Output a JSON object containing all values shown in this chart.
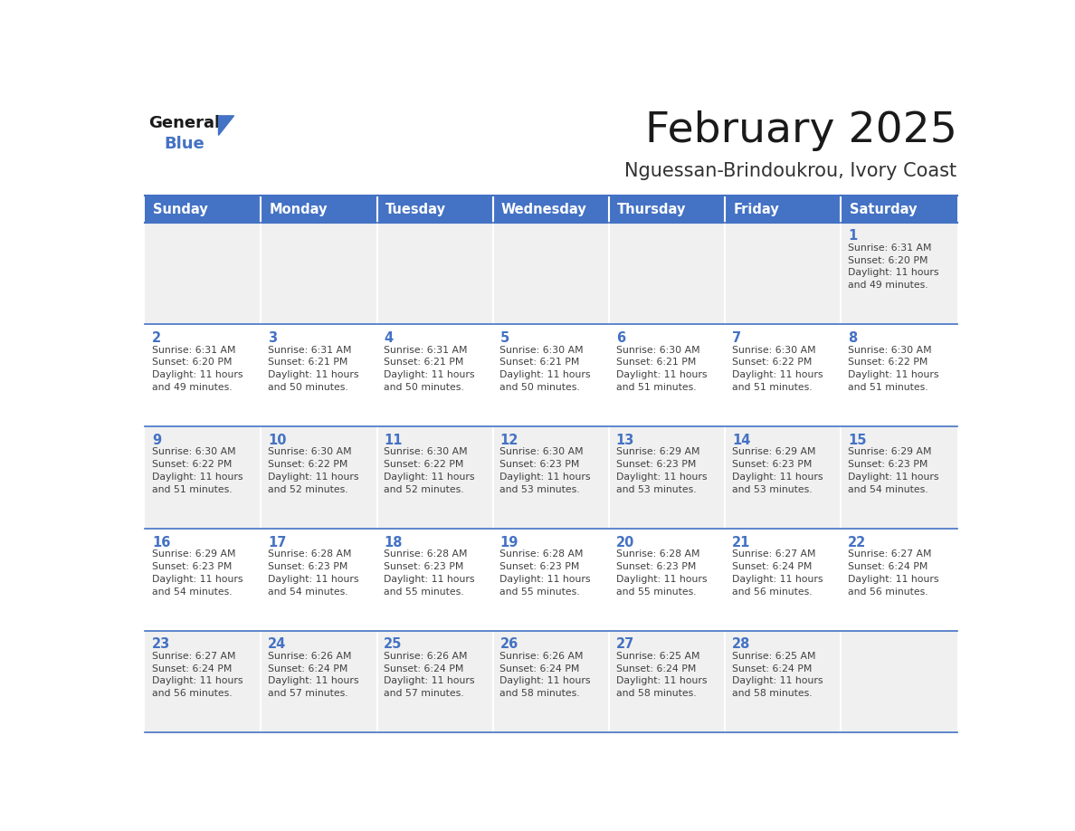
{
  "title": "February 2025",
  "subtitle": "Nguessan-Brindoukrou, Ivory Coast",
  "days_of_week": [
    "Sunday",
    "Monday",
    "Tuesday",
    "Wednesday",
    "Thursday",
    "Friday",
    "Saturday"
  ],
  "header_bg": "#4472C4",
  "header_text": "#FFFFFF",
  "cell_bg_odd": "#F0F0F0",
  "cell_bg_even": "#FFFFFF",
  "row_sep_color": "#4472C4",
  "day_number_color": "#4472C4",
  "text_color": "#404040",
  "title_color": "#1a1a1a",
  "subtitle_color": "#333333",
  "logo_general_color": "#1a1a1a",
  "logo_blue_color": "#4472C4",
  "weeks": [
    [
      {
        "day": null,
        "sunrise": null,
        "sunset": null,
        "daylight": null
      },
      {
        "day": null,
        "sunrise": null,
        "sunset": null,
        "daylight": null
      },
      {
        "day": null,
        "sunrise": null,
        "sunset": null,
        "daylight": null
      },
      {
        "day": null,
        "sunrise": null,
        "sunset": null,
        "daylight": null
      },
      {
        "day": null,
        "sunrise": null,
        "sunset": null,
        "daylight": null
      },
      {
        "day": null,
        "sunrise": null,
        "sunset": null,
        "daylight": null
      },
      {
        "day": 1,
        "sunrise": "6:31 AM",
        "sunset": "6:20 PM",
        "daylight": "11 hours\nand 49 minutes."
      }
    ],
    [
      {
        "day": 2,
        "sunrise": "6:31 AM",
        "sunset": "6:20 PM",
        "daylight": "11 hours\nand 49 minutes."
      },
      {
        "day": 3,
        "sunrise": "6:31 AM",
        "sunset": "6:21 PM",
        "daylight": "11 hours\nand 50 minutes."
      },
      {
        "day": 4,
        "sunrise": "6:31 AM",
        "sunset": "6:21 PM",
        "daylight": "11 hours\nand 50 minutes."
      },
      {
        "day": 5,
        "sunrise": "6:30 AM",
        "sunset": "6:21 PM",
        "daylight": "11 hours\nand 50 minutes."
      },
      {
        "day": 6,
        "sunrise": "6:30 AM",
        "sunset": "6:21 PM",
        "daylight": "11 hours\nand 51 minutes."
      },
      {
        "day": 7,
        "sunrise": "6:30 AM",
        "sunset": "6:22 PM",
        "daylight": "11 hours\nand 51 minutes."
      },
      {
        "day": 8,
        "sunrise": "6:30 AM",
        "sunset": "6:22 PM",
        "daylight": "11 hours\nand 51 minutes."
      }
    ],
    [
      {
        "day": 9,
        "sunrise": "6:30 AM",
        "sunset": "6:22 PM",
        "daylight": "11 hours\nand 51 minutes."
      },
      {
        "day": 10,
        "sunrise": "6:30 AM",
        "sunset": "6:22 PM",
        "daylight": "11 hours\nand 52 minutes."
      },
      {
        "day": 11,
        "sunrise": "6:30 AM",
        "sunset": "6:22 PM",
        "daylight": "11 hours\nand 52 minutes."
      },
      {
        "day": 12,
        "sunrise": "6:30 AM",
        "sunset": "6:23 PM",
        "daylight": "11 hours\nand 53 minutes."
      },
      {
        "day": 13,
        "sunrise": "6:29 AM",
        "sunset": "6:23 PM",
        "daylight": "11 hours\nand 53 minutes."
      },
      {
        "day": 14,
        "sunrise": "6:29 AM",
        "sunset": "6:23 PM",
        "daylight": "11 hours\nand 53 minutes."
      },
      {
        "day": 15,
        "sunrise": "6:29 AM",
        "sunset": "6:23 PM",
        "daylight": "11 hours\nand 54 minutes."
      }
    ],
    [
      {
        "day": 16,
        "sunrise": "6:29 AM",
        "sunset": "6:23 PM",
        "daylight": "11 hours\nand 54 minutes."
      },
      {
        "day": 17,
        "sunrise": "6:28 AM",
        "sunset": "6:23 PM",
        "daylight": "11 hours\nand 54 minutes."
      },
      {
        "day": 18,
        "sunrise": "6:28 AM",
        "sunset": "6:23 PM",
        "daylight": "11 hours\nand 55 minutes."
      },
      {
        "day": 19,
        "sunrise": "6:28 AM",
        "sunset": "6:23 PM",
        "daylight": "11 hours\nand 55 minutes."
      },
      {
        "day": 20,
        "sunrise": "6:28 AM",
        "sunset": "6:23 PM",
        "daylight": "11 hours\nand 55 minutes."
      },
      {
        "day": 21,
        "sunrise": "6:27 AM",
        "sunset": "6:24 PM",
        "daylight": "11 hours\nand 56 minutes."
      },
      {
        "day": 22,
        "sunrise": "6:27 AM",
        "sunset": "6:24 PM",
        "daylight": "11 hours\nand 56 minutes."
      }
    ],
    [
      {
        "day": 23,
        "sunrise": "6:27 AM",
        "sunset": "6:24 PM",
        "daylight": "11 hours\nand 56 minutes."
      },
      {
        "day": 24,
        "sunrise": "6:26 AM",
        "sunset": "6:24 PM",
        "daylight": "11 hours\nand 57 minutes."
      },
      {
        "day": 25,
        "sunrise": "6:26 AM",
        "sunset": "6:24 PM",
        "daylight": "11 hours\nand 57 minutes."
      },
      {
        "day": 26,
        "sunrise": "6:26 AM",
        "sunset": "6:24 PM",
        "daylight": "11 hours\nand 58 minutes."
      },
      {
        "day": 27,
        "sunrise": "6:25 AM",
        "sunset": "6:24 PM",
        "daylight": "11 hours\nand 58 minutes."
      },
      {
        "day": 28,
        "sunrise": "6:25 AM",
        "sunset": "6:24 PM",
        "daylight": "11 hours\nand 58 minutes."
      },
      {
        "day": null,
        "sunrise": null,
        "sunset": null,
        "daylight": null
      }
    ]
  ]
}
